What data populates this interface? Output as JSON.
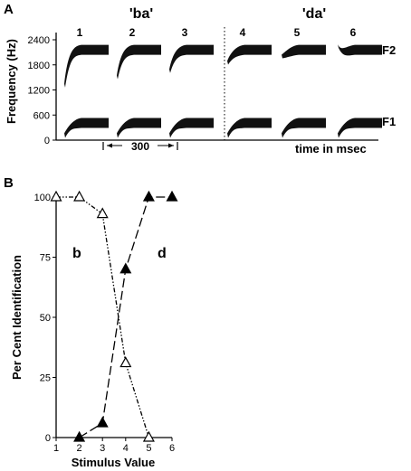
{
  "panel_a": {
    "letter": "A",
    "groups": [
      {
        "label": "'ba'",
        "stimuli": [
          1,
          2,
          3
        ]
      },
      {
        "label": "'da'",
        "stimuli": [
          4,
          5,
          6
        ]
      }
    ],
    "ylabel": "Frequency (Hz)",
    "yticks": [
      0,
      600,
      1200,
      1800,
      2400
    ],
    "formants": [
      "F2",
      "F1"
    ],
    "duration_label": "300",
    "xlabel": "time in msec",
    "f1_hz": 400,
    "f2_hz": 2150,
    "f2_onsets_hz": [
      1300,
      1500,
      1650,
      1850,
      2000,
      2250
    ]
  },
  "panel_b": {
    "letter": "B",
    "category_labels": [
      "b",
      "d"
    ]
  },
  "chart_data": {
    "type": "line",
    "xlabel": "Stimulus Value",
    "ylabel": "Per Cent Identification",
    "xlim": [
      1,
      6
    ],
    "ylim": [
      0,
      100
    ],
    "xticks": [
      1,
      2,
      3,
      4,
      5,
      6
    ],
    "yticks": [
      0,
      25,
      50,
      75,
      100
    ],
    "series": [
      {
        "name": "b",
        "marker": "open-triangle",
        "line": "dash-dot-dot",
        "x": [
          1,
          2,
          3,
          4,
          5
        ],
        "y": [
          100,
          100,
          93,
          31,
          0
        ]
      },
      {
        "name": "d",
        "marker": "filled-triangle",
        "line": "long-dash",
        "x": [
          2,
          3,
          4,
          5,
          6
        ],
        "y": [
          0,
          6,
          70,
          100,
          100
        ]
      }
    ]
  }
}
